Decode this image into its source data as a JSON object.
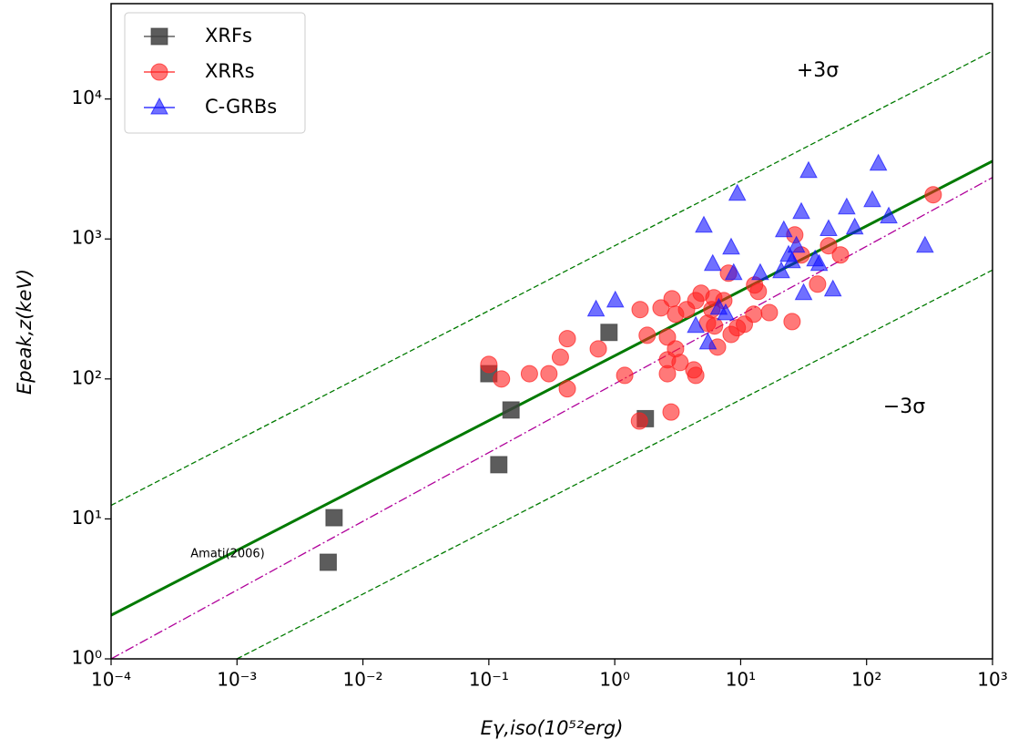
{
  "chart_data": {
    "type": "scatter",
    "x_label": "Eγ,iso(10⁵²erg)",
    "y_label": "Epeak,z(keV)",
    "xscale": "log",
    "yscale": "log",
    "xlim": [
      0.0001,
      1000
    ],
    "ylim": [
      1,
      48000
    ],
    "xticks": [
      {
        "value": 0.0001,
        "label": "10⁻⁴"
      },
      {
        "value": 0.001,
        "label": "10⁻³"
      },
      {
        "value": 0.01,
        "label": "10⁻²"
      },
      {
        "value": 0.1,
        "label": "10⁻¹"
      },
      {
        "value": 1,
        "label": "10⁰"
      },
      {
        "value": 10,
        "label": "10¹"
      },
      {
        "value": 100,
        "label": "10²"
      },
      {
        "value": 1000,
        "label": "10³"
      }
    ],
    "yticks": [
      {
        "value": 1,
        "label": "10⁰"
      },
      {
        "value": 10,
        "label": "10¹"
      },
      {
        "value": 100,
        "label": "10²"
      },
      {
        "value": 1000,
        "label": "10³"
      },
      {
        "value": 10000,
        "label": "10⁴"
      }
    ],
    "legend": "upper left",
    "series": [
      {
        "name": "XRFs",
        "color": "#404040",
        "marker": "square",
        "x": [
          0.0053,
          0.0059,
          0.1,
          0.12,
          0.15,
          0.9,
          1.75
        ],
        "values": [
          4.9,
          10.2,
          109,
          24.4,
          60,
          215,
          52
        ]
      },
      {
        "name": "XRRs",
        "color": "#ff2020",
        "marker": "circle",
        "x": [
          0.1,
          0.126,
          0.21,
          0.3,
          0.37,
          0.42,
          0.42,
          0.74,
          1.2,
          1.59,
          1.57,
          1.81,
          2.33,
          2.62,
          2.62,
          2.62,
          2.8,
          2.85,
          3.04,
          3.04,
          3.3,
          3.72,
          4.24,
          4.4,
          4.4,
          4.85,
          5.45,
          5.9,
          6.12,
          6.2,
          6.55,
          7.35,
          8.4,
          9.4,
          10.7,
          12.7,
          12.9,
          13.8,
          16.9,
          8.0,
          25.6,
          26.9,
          30.3,
          40.8,
          49.9,
          62,
          338
        ],
        "values": [
          127,
          100,
          109,
          109,
          143,
          194,
          85,
          164,
          106,
          313,
          50,
          205,
          322,
          199,
          109,
          137,
          58,
          374,
          290,
          164,
          131,
          313,
          116,
          106,
          363,
          410,
          250,
          313,
          380,
          239,
          169,
          363,
          208,
          232,
          246,
          290,
          469,
          422,
          298,
          570,
          257,
          1070,
          769,
          476,
          894,
          769,
          2070
        ]
      },
      {
        "name": "C-GRBs",
        "color": "#1010ff",
        "marker": "triangle",
        "x": [
          0.71,
          1.01,
          4.4,
          5.1,
          5.5,
          6.0,
          6.7,
          7.6,
          8.4,
          8.8,
          9.4,
          14.3,
          21,
          22,
          24,
          27.7,
          30.3,
          31.6,
          34.6,
          39,
          49.9,
          54,
          69.5,
          80.5,
          111,
          124,
          150,
          291,
          25.6,
          42
        ],
        "values": [
          313,
          363,
          239,
          1243,
          182,
          662,
          322,
          294,
          867,
          570,
          2100,
          570,
          587,
          1153,
          769,
          894,
          1556,
          410,
          3055,
          714,
          1175,
          435,
          1678,
          1206,
          1892,
          3445,
          1445,
          894,
          692,
          662
        ]
      }
    ],
    "lines": [
      {
        "x": [
          0.0001,
          1000
        ],
        "values": [
          2.05,
          3600
        ],
        "color": "#007a00",
        "style": "solid"
      },
      {
        "x": [
          0.0001,
          1000
        ],
        "values": [
          12.5,
          22000
        ],
        "color": "#007a00",
        "style": "dashed"
      },
      {
        "x": [
          0.001,
          1000
        ],
        "values": [
          1,
          600
        ],
        "color": "#007a00",
        "style": "dashed"
      },
      {
        "x": [
          0.0001,
          1000
        ],
        "values": [
          1,
          2750
        ],
        "color": "#b0009a",
        "style": "dashdot"
      }
    ],
    "annotations": [
      "+3σ",
      "−3σ",
      "Amati(2006)"
    ]
  }
}
